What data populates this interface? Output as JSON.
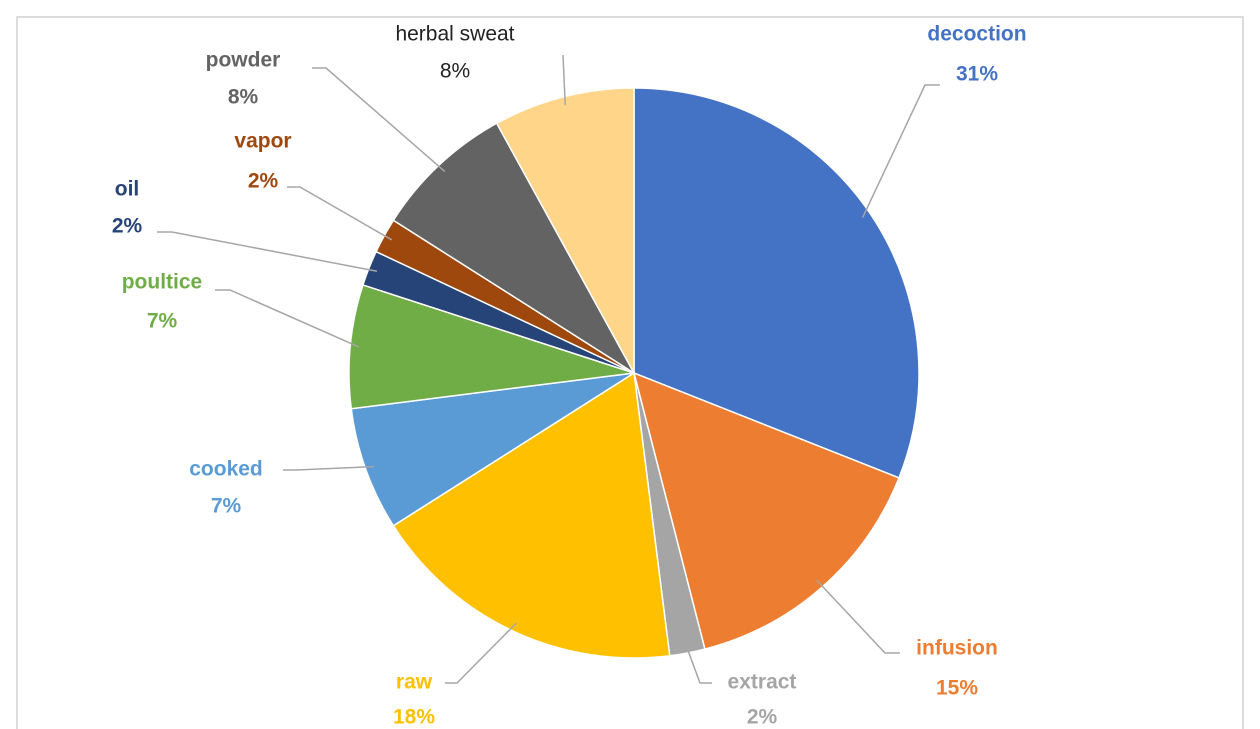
{
  "chart_data": {
    "type": "pie",
    "categories": [
      "decoction",
      "infusion",
      "extract",
      "raw",
      "cooked",
      "poultice",
      "oil",
      "vapor",
      "powder",
      "herbal sweat"
    ],
    "values": [
      31,
      15,
      2,
      18,
      7,
      7,
      2,
      2,
      8,
      8
    ],
    "value_labels": [
      "31%",
      "15%",
      "2%",
      "18%",
      "7%",
      "7%",
      "2%",
      "2%",
      "8%",
      "8%"
    ],
    "colors": [
      "#4472c4",
      "#ed7d31",
      "#a5a5a5",
      "#ffc000",
      "#5b9bd5",
      "#70ad47",
      "#264478",
      "#9e480e",
      "#636363",
      "#ffd58a"
    ]
  }
}
